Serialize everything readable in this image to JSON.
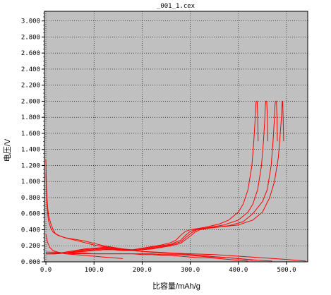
{
  "chart_data": {
    "type": "line",
    "title": "_001_1.cex",
    "xlabel": "比容量/mAh/g",
    "ylabel": "电压/V",
    "xlim": [
      -3,
      544
    ],
    "ylim": [
      0.0,
      3.12
    ],
    "x_ticks": [
      0,
      100,
      200,
      300,
      400,
      500
    ],
    "x_tick_labels": [
      "0.0",
      "100.0",
      "200.0",
      "300.0",
      "400.0",
      "500.0"
    ],
    "y_ticks": [
      0.0,
      0.2,
      0.4,
      0.6,
      0.8,
      1.0,
      1.2,
      1.4,
      1.6,
      1.8,
      2.0,
      2.2,
      2.4,
      2.6,
      2.8,
      3.0
    ],
    "y_tick_labels": [
      "0.000",
      "0.200",
      "0.400",
      "0.600",
      "0.800",
      "1.000",
      "1.200",
      "1.400",
      "1.600",
      "1.800",
      "2.000",
      "2.200",
      "2.400",
      "2.600",
      "2.800",
      "3.000"
    ],
    "grid": true,
    "plot_background": "#c0c0c0",
    "line_color": "#ff0000",
    "series": [
      {
        "x": [
          0,
          1,
          2,
          4,
          6,
          10,
          15,
          20,
          30,
          40,
          60,
          80,
          100,
          120,
          140,
          160,
          180,
          200,
          230,
          260,
          300,
          350,
          400,
          450,
          500,
          540
        ],
        "y": [
          1.28,
          1.0,
          0.8,
          0.65,
          0.57,
          0.48,
          0.4,
          0.35,
          0.32,
          0.3,
          0.28,
          0.26,
          0.23,
          0.2,
          0.18,
          0.16,
          0.14,
          0.13,
          0.12,
          0.11,
          0.1,
          0.09,
          0.07,
          0.05,
          0.03,
          0.01
        ]
      },
      {
        "x": [
          0,
          2,
          5,
          10,
          15,
          25,
          40,
          60,
          80,
          100,
          130,
          160,
          180,
          200,
          240,
          280,
          320,
          360,
          400,
          430
        ],
        "y": [
          1.1,
          0.72,
          0.52,
          0.42,
          0.37,
          0.33,
          0.3,
          0.27,
          0.24,
          0.21,
          0.18,
          0.16,
          0.14,
          0.13,
          0.11,
          0.1,
          0.08,
          0.06,
          0.04,
          0.02
        ]
      },
      {
        "x": [
          0,
          3,
          8,
          15,
          25,
          40,
          60,
          80,
          100,
          120,
          140,
          160
        ],
        "y": [
          0.35,
          0.25,
          0.18,
          0.14,
          0.12,
          0.1,
          0.09,
          0.08,
          0.07,
          0.06,
          0.05,
          0.04
        ]
      },
      {
        "x": [
          0,
          20,
          40,
          60,
          80,
          100,
          120,
          140,
          160,
          180,
          200,
          220,
          240,
          260,
          280,
          300,
          320,
          340,
          360,
          380,
          400,
          420
        ],
        "y": [
          0.1,
          0.11,
          0.11,
          0.1,
          0.1,
          0.1,
          0.1,
          0.1,
          0.1,
          0.1,
          0.09,
          0.09,
          0.08,
          0.08,
          0.07,
          0.06,
          0.05,
          0.05,
          0.04,
          0.03,
          0.02,
          0.01
        ]
      },
      {
        "x": [
          0,
          20,
          40,
          60,
          80,
          100,
          120,
          140,
          160,
          180,
          200,
          220,
          240,
          260,
          280,
          300,
          320,
          340,
          360,
          380,
          400,
          440,
          470
        ],
        "y": [
          0.12,
          0.12,
          0.11,
          0.11,
          0.11,
          0.1,
          0.1,
          0.1,
          0.1,
          0.1,
          0.1,
          0.1,
          0.09,
          0.09,
          0.09,
          0.08,
          0.07,
          0.06,
          0.06,
          0.05,
          0.04,
          0.02,
          0.01
        ]
      },
      {
        "x": [
          0,
          20,
          40,
          60,
          80,
          100,
          120,
          140,
          160,
          180,
          200,
          220,
          240,
          260,
          270,
          280,
          290,
          300,
          330,
          360,
          380,
          400,
          410,
          420,
          428,
          432,
          435,
          436,
          437,
          439,
          440,
          441
        ],
        "y": [
          0.1,
          0.1,
          0.12,
          0.14,
          0.16,
          0.17,
          0.18,
          0.17,
          0.16,
          0.15,
          0.17,
          0.19,
          0.21,
          0.24,
          0.27,
          0.33,
          0.38,
          0.4,
          0.43,
          0.47,
          0.52,
          0.62,
          0.72,
          0.9,
          1.2,
          1.5,
          1.8,
          1.95,
          2.0,
          2.0,
          1.8,
          1.5
        ]
      },
      {
        "x": [
          0,
          20,
          40,
          60,
          80,
          100,
          120,
          140,
          160,
          180,
          200,
          220,
          240,
          260,
          280,
          290,
          300,
          310,
          340,
          370,
          400,
          420,
          430,
          440,
          448,
          452,
          455,
          456,
          457,
          459,
          460,
          461
        ],
        "y": [
          0.1,
          0.1,
          0.11,
          0.13,
          0.15,
          0.16,
          0.17,
          0.16,
          0.15,
          0.15,
          0.16,
          0.18,
          0.2,
          0.22,
          0.27,
          0.33,
          0.38,
          0.4,
          0.43,
          0.46,
          0.52,
          0.62,
          0.72,
          0.9,
          1.2,
          1.5,
          1.8,
          1.95,
          2.0,
          2.0,
          1.8,
          1.5
        ]
      },
      {
        "x": [
          0,
          20,
          40,
          60,
          80,
          100,
          120,
          140,
          160,
          180,
          200,
          220,
          240,
          260,
          280,
          290,
          300,
          310,
          320,
          350,
          380,
          410,
          430,
          450,
          460,
          468,
          472,
          475,
          476,
          477,
          479,
          480,
          481
        ],
        "y": [
          0.1,
          0.1,
          0.11,
          0.12,
          0.14,
          0.15,
          0.16,
          0.15,
          0.15,
          0.14,
          0.15,
          0.17,
          0.19,
          0.21,
          0.25,
          0.3,
          0.35,
          0.39,
          0.41,
          0.43,
          0.45,
          0.5,
          0.6,
          0.75,
          0.9,
          1.2,
          1.5,
          1.8,
          1.95,
          2.0,
          2.0,
          1.8,
          1.5
        ]
      },
      {
        "x": [
          0,
          20,
          40,
          60,
          80,
          100,
          120,
          140,
          160,
          180,
          200,
          220,
          240,
          260,
          280,
          300,
          310,
          320,
          340,
          370,
          400,
          430,
          450,
          465,
          475,
          483,
          487,
          490,
          491,
          492,
          493,
          494
        ],
        "y": [
          0.1,
          0.1,
          0.11,
          0.12,
          0.13,
          0.14,
          0.15,
          0.15,
          0.14,
          0.14,
          0.15,
          0.16,
          0.18,
          0.2,
          0.23,
          0.32,
          0.37,
          0.4,
          0.42,
          0.44,
          0.46,
          0.52,
          0.62,
          0.8,
          1.0,
          1.3,
          1.6,
          1.85,
          2.0,
          2.0,
          1.8,
          1.5
        ]
      }
    ]
  }
}
